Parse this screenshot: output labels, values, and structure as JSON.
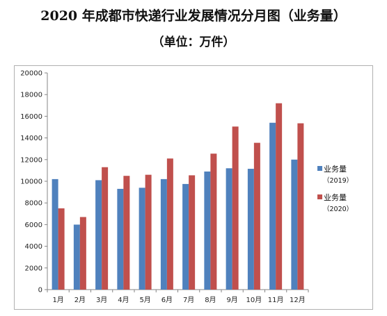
{
  "title": "2020 年成都市快递行业发展情况分月图（业务量）",
  "subtitle": "（单位：万件）",
  "chart_data": {
    "type": "bar",
    "categories": [
      "1月",
      "2月",
      "3月",
      "4月",
      "5月",
      "6月",
      "7月",
      "8月",
      "9月",
      "10月",
      "11月",
      "12月"
    ],
    "series": [
      {
        "name": "业务量",
        "name_sub": "（2019）",
        "color": "#4f81bd",
        "values": [
          10200,
          6000,
          10100,
          9300,
          9400,
          10200,
          9750,
          10900,
          11200,
          11150,
          15400,
          12000
        ]
      },
      {
        "name": "业务量",
        "name_sub": "（2020）",
        "color": "#c0504d",
        "values": [
          7500,
          6700,
          11300,
          10500,
          10600,
          12100,
          10550,
          12550,
          15050,
          13550,
          17200,
          15350
        ]
      }
    ],
    "ylim": [
      0,
      20000
    ],
    "yticks": [
      "0",
      "2000",
      "4000",
      "6000",
      "8000",
      "10000",
      "12000",
      "14000",
      "16000",
      "18000",
      "20000"
    ],
    "grid": false,
    "legend_position": "right"
  }
}
